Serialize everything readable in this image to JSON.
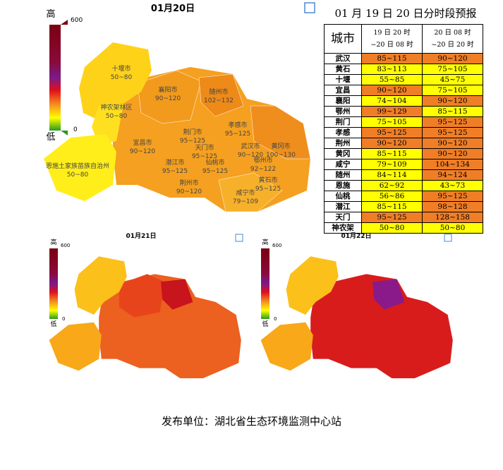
{
  "main_map": {
    "title": "01月20日",
    "legend": {
      "high": "高",
      "max": "600",
      "low": "低",
      "min": "0"
    },
    "regions": [
      {
        "name": "十堰市",
        "value": "50~80"
      },
      {
        "name": "神农架林区",
        "value": "50~80"
      },
      {
        "name": "襄阳市",
        "value": "90~120"
      },
      {
        "name": "随州市",
        "value": "102~132"
      },
      {
        "name": "孝感市",
        "value": "95~125"
      },
      {
        "name": "宜昌市",
        "value": "90~120"
      },
      {
        "name": "荆门市",
        "value": "95~125"
      },
      {
        "name": "天门市",
        "value": "95~125"
      },
      {
        "name": "潜江市",
        "value": "95~125"
      },
      {
        "name": "仙桃市",
        "value": "95~125"
      },
      {
        "name": "武汉市",
        "value": "90~120"
      },
      {
        "name": "黄冈市",
        "value": "100~130"
      },
      {
        "name": "鄂州市",
        "value": "92~122"
      },
      {
        "name": "恩施土家族苗族自治州",
        "value": "50~80"
      },
      {
        "name": "荆州市",
        "value": "90~120"
      },
      {
        "name": "黄石市",
        "value": "95~125"
      },
      {
        "name": "咸宁市",
        "value": "79~109"
      }
    ]
  },
  "small_maps": [
    {
      "title": "01月21日",
      "legend": {
        "high": "高",
        "max": "600",
        "low": "低",
        "min": "0"
      }
    },
    {
      "title": "01月22日",
      "legend": {
        "high": "高",
        "max": "600",
        "low": "低",
        "min": "0"
      }
    }
  ],
  "table": {
    "title": "01 月 19 日 20 日分时段预报",
    "header": [
      "城市",
      "19 日 20 时\n~20 日 08 时",
      "20 日 08 时\n~20 日 20 时"
    ],
    "colors": {
      "Y": "#ffff00",
      "O": "#f07e26"
    },
    "rows": [
      [
        "武汉",
        "85~115",
        "90~120"
      ],
      [
        "黄石",
        "83~113",
        "75~105"
      ],
      [
        "十堰",
        "55~85",
        "45~75"
      ],
      [
        "宜昌",
        "90~120",
        "75~105"
      ],
      [
        "襄阳",
        "74~104",
        "90~120"
      ],
      [
        "鄂州",
        "99~129",
        "85~115"
      ],
      [
        "荆门",
        "75~105",
        "95~125"
      ],
      [
        "孝感",
        "95~125",
        "95~125"
      ],
      [
        "荆州",
        "90~120",
        "90~120"
      ],
      [
        "黄冈",
        "85~115",
        "90~120"
      ],
      [
        "咸宁",
        "79~109",
        "104~134"
      ],
      [
        "随州",
        "84~114",
        "94~124"
      ],
      [
        "恩施",
        "62~92",
        "43~73"
      ],
      [
        "仙桃",
        "56~86",
        "95~125"
      ],
      [
        "潜江",
        "85~115",
        "98~128"
      ],
      [
        "天门",
        "95~125",
        "128~158"
      ],
      [
        "神农架",
        "50~80",
        "50~80"
      ]
    ],
    "row_colors": [
      [
        "O",
        "O"
      ],
      [
        "Y",
        "Y"
      ],
      [
        "Y",
        "Y"
      ],
      [
        "O",
        "Y"
      ],
      [
        "Y",
        "O"
      ],
      [
        "O",
        "Y"
      ],
      [
        "Y",
        "O"
      ],
      [
        "O",
        "O"
      ],
      [
        "O",
        "O"
      ],
      [
        "Y",
        "O"
      ],
      [
        "Y",
        "O"
      ],
      [
        "Y",
        "O"
      ],
      [
        "Y",
        "Y"
      ],
      [
        "Y",
        "O"
      ],
      [
        "Y",
        "O"
      ],
      [
        "O",
        "O"
      ],
      [
        "Y",
        "Y"
      ]
    ]
  },
  "footer": "发布单位：湖北省生态环境监测中心站"
}
